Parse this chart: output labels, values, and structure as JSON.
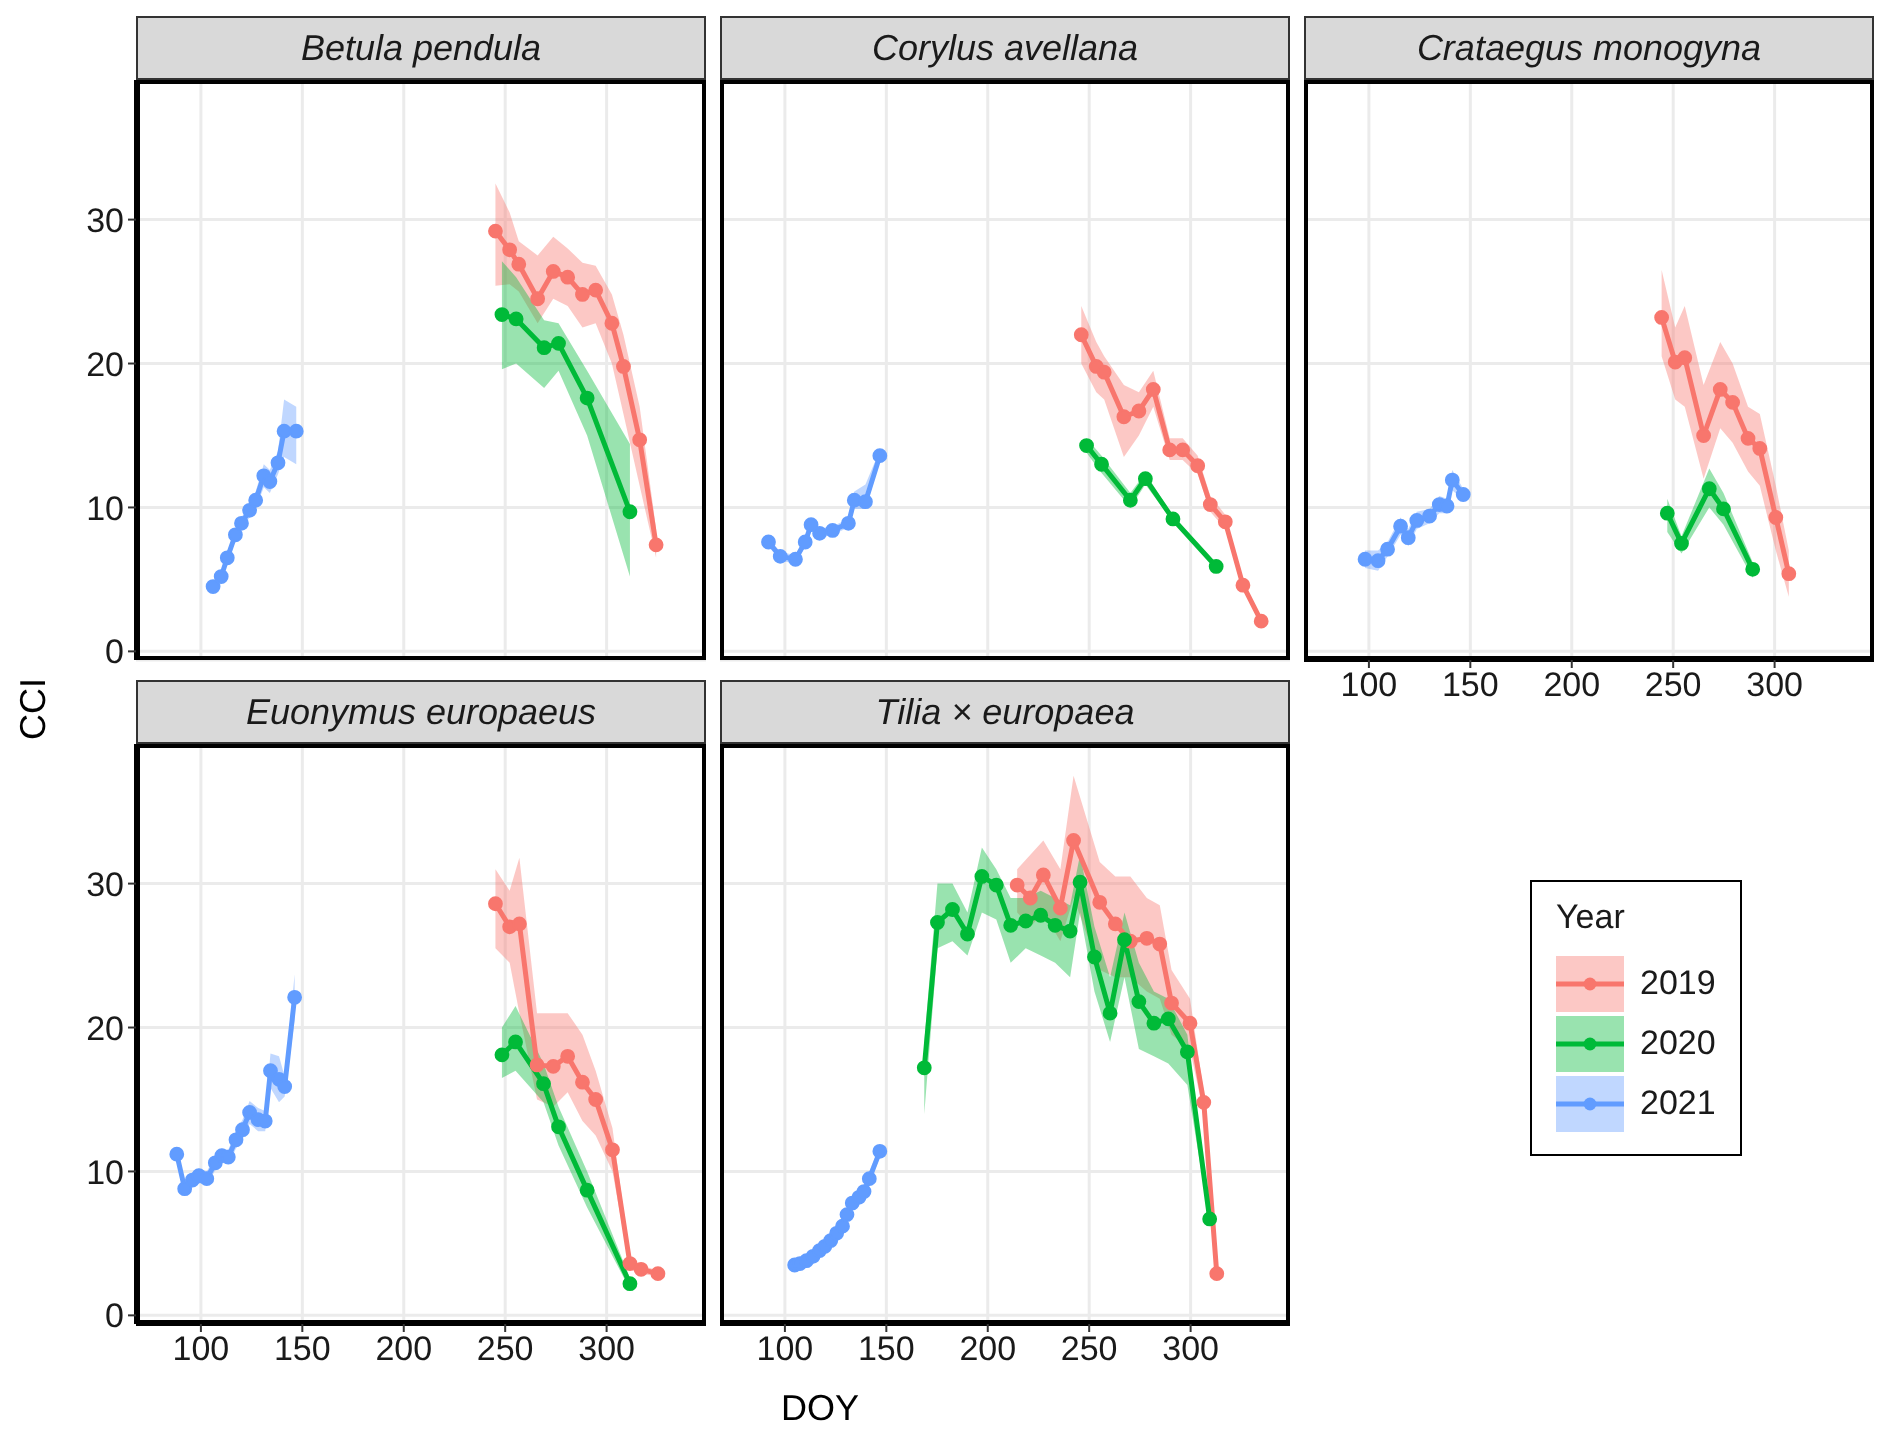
{
  "chart_data": [
    {
      "type": "line",
      "title": "Betula pendula",
      "ylabel": "CCI",
      "legend": "right",
      "legend_title": "Year",
      "xlim": [
        68,
        349
      ],
      "xticks": [
        100,
        150,
        200,
        250,
        300
      ],
      "ylim": [
        -0.6,
        39.7
      ],
      "yticks": [
        0,
        10,
        20,
        30
      ],
      "grid": true,
      "marker": "circle",
      "tick_labels": "y",
      "series": [
        {
          "name": "2019",
          "color": "#f8766d",
          "x": [
            245.2,
            252.2,
            256.7,
            266,
            273.7,
            280.8,
            288.1,
            294.6,
            302.6,
            308.3,
            316.3,
            324.4
          ],
          "values": [
            29.2,
            27.9,
            26.9,
            24.5,
            26.4,
            26.0,
            24.8,
            25.1,
            22.8,
            19.8,
            14.7,
            7.4
          ],
          "lower": [
            25.4,
            25.5,
            25.0,
            22.8,
            24.5,
            24.0,
            22.5,
            22.8,
            20.0,
            16.5,
            11.5,
            6.5
          ],
          "upper": [
            32.5,
            30.5,
            28.5,
            27.5,
            28.8,
            28.0,
            27.0,
            26.8,
            24.8,
            22.0,
            17.0,
            8.5
          ]
        },
        {
          "name": "2020",
          "color": "#00ba38",
          "x": [
            248.4,
            255.4,
            269.2,
            276.3,
            290.4,
            311.5
          ],
          "values": [
            23.4,
            23.1,
            21.1,
            21.4,
            17.6,
            9.7
          ],
          "lower": [
            19.6,
            20.0,
            18.3,
            19.5,
            15.0,
            5.2
          ],
          "upper": [
            27.1,
            26.0,
            23.0,
            22.8,
            19.5,
            14.4
          ]
        },
        {
          "name": "2021",
          "color": "#619cff",
          "x": [
            106,
            110,
            113,
            117,
            120,
            124,
            127,
            131,
            134,
            138,
            141,
            147
          ],
          "values": [
            4.5,
            5.2,
            6.5,
            8.1,
            8.9,
            9.8,
            10.5,
            12.2,
            11.8,
            13.1,
            15.3,
            15.3
          ],
          "lower": [
            4.2,
            4.9,
            6.1,
            7.7,
            8.5,
            9.3,
            9.9,
            11.4,
            11.0,
            12.3,
            13.5,
            13.0
          ],
          "upper": [
            4.8,
            5.5,
            6.9,
            8.5,
            9.3,
            10.3,
            11.1,
            13.0,
            12.6,
            13.9,
            17.5,
            17.0
          ]
        }
      ]
    },
    {
      "type": "line",
      "title": "Corylus avellana",
      "xlim": [
        68,
        349
      ],
      "xticks": [
        100,
        150,
        200,
        250,
        300
      ],
      "ylim": [
        -0.6,
        39.7
      ],
      "yticks": [
        0,
        10,
        20,
        30
      ],
      "grid": true,
      "marker": "circle",
      "tick_labels": false,
      "series": [
        {
          "name": "2019",
          "color": "#f8766d",
          "x": [
            246.1,
            253.5,
            257.4,
            267.1,
            274.5,
            281.6,
            289.7,
            296.1,
            303.5,
            309.7,
            317.1,
            325.8,
            334.8
          ],
          "values": [
            22.0,
            19.8,
            19.4,
            16.3,
            16.7,
            18.2,
            14.0,
            14.0,
            12.9,
            10.2,
            9.0,
            4.6,
            2.1
          ],
          "lower": [
            20.0,
            18.0,
            17.5,
            13.5,
            15.0,
            17.0,
            13.3,
            13.3,
            12.3,
            9.7,
            8.5,
            4.3,
            1.9
          ],
          "upper": [
            24.0,
            21.5,
            20.5,
            18.5,
            18.0,
            19.5,
            14.8,
            14.8,
            13.6,
            10.8,
            9.5,
            4.9,
            2.3
          ]
        },
        {
          "name": "2020",
          "color": "#00ba38",
          "x": [
            248.7,
            256.1,
            270.3,
            277.7,
            291.3,
            312.6
          ],
          "values": [
            14.3,
            13.0,
            10.5,
            12.0,
            9.2,
            5.9
          ],
          "lower": [
            13.8,
            12.4,
            10.0,
            11.6,
            9.0,
            5.7
          ],
          "upper": [
            14.8,
            13.6,
            11.0,
            12.4,
            9.4,
            6.1
          ]
        },
        {
          "name": "2021",
          "color": "#619cff",
          "x": [
            91.9,
            97.7,
            105.2,
            110,
            112.9,
            117.1,
            123.5,
            131.3,
            134.2,
            139.7,
            146.8
          ],
          "values": [
            7.6,
            6.6,
            6.4,
            7.6,
            8.8,
            8.2,
            8.4,
            8.9,
            10.5,
            10.4,
            13.6
          ],
          "lower": [
            7.3,
            6.3,
            6.1,
            7.3,
            8.5,
            7.9,
            8.1,
            8.6,
            9.9,
            9.9,
            13.2
          ],
          "upper": [
            7.9,
            6.9,
            6.7,
            7.9,
            9.1,
            8.5,
            8.7,
            9.2,
            11.1,
            11.6,
            14.0
          ]
        }
      ]
    },
    {
      "type": "line",
      "title": "Crataegus monogyna",
      "xlim": [
        68,
        349
      ],
      "xticks": [
        100,
        150,
        200,
        250,
        300
      ],
      "ylim": [
        -0.6,
        39.7
      ],
      "yticks": [
        0,
        10,
        20,
        30
      ],
      "grid": true,
      "marker": "circle",
      "tick_labels": "x",
      "series": [
        {
          "name": "2019",
          "color": "#f8766d",
          "x": [
            244.3,
            251,
            255.7,
            265,
            273.2,
            279.3,
            286.9,
            292.7,
            300.6,
            307
          ],
          "values": [
            23.2,
            20.1,
            20.4,
            15.0,
            18.2,
            17.3,
            14.8,
            14.1,
            9.3,
            5.4
          ],
          "lower": [
            20.5,
            17.5,
            17.0,
            12.0,
            15.5,
            14.5,
            12.5,
            11.5,
            7.0,
            3.8
          ],
          "upper": [
            26.5,
            22.5,
            24.0,
            18.5,
            21.5,
            20.0,
            17.0,
            16.5,
            11.5,
            7.0
          ]
        },
        {
          "name": "2020",
          "color": "#00ba38",
          "x": [
            247.1,
            254.1,
            267.8,
            274.8,
            289.2
          ],
          "values": [
            9.6,
            7.5,
            11.3,
            9.9,
            5.7
          ],
          "lower": [
            8.3,
            6.8,
            10.0,
            8.8,
            5.1
          ],
          "upper": [
            10.6,
            8.0,
            12.7,
            11.0,
            6.2
          ]
        },
        {
          "name": "2021",
          "color": "#619cff",
          "x": [
            98.1,
            104.5,
            109.2,
            115.6,
            119.4,
            123.6,
            129.9,
            134.7,
            138.5,
            141.1,
            146.5
          ],
          "values": [
            6.4,
            6.3,
            7.1,
            8.7,
            7.9,
            9.1,
            9.4,
            10.2,
            10.1,
            11.9,
            10.9
          ],
          "lower": [
            5.8,
            5.6,
            6.6,
            8.1,
            7.3,
            8.5,
            8.9,
            9.6,
            9.6,
            11.2,
            10.5
          ],
          "upper": [
            7.0,
            7.0,
            7.6,
            9.3,
            8.5,
            9.7,
            9.9,
            10.8,
            10.6,
            12.6,
            11.3
          ]
        }
      ]
    },
    {
      "type": "line",
      "title": "Euonymus europaeus",
      "xlim": [
        68,
        349
      ],
      "xticks": [
        100,
        150,
        200,
        250,
        300
      ],
      "ylim": [
        -0.6,
        39.7
      ],
      "yticks": [
        0,
        10,
        20,
        30
      ],
      "grid": true,
      "marker": "circle",
      "series": [
        {
          "name": "2019",
          "color": "#f8766d",
          "x": [
            245.2,
            252.2,
            257,
            265.7,
            273.7,
            280.8,
            288.1,
            294.6,
            302.9,
            311.5,
            317,
            325.3
          ],
          "values": [
            28.6,
            27.0,
            27.2,
            17.4,
            17.3,
            18.0,
            16.2,
            15.0,
            11.5,
            3.6,
            3.2,
            2.9
          ],
          "lower": [
            25.5,
            24.5,
            21.0,
            15.0,
            14.5,
            15.5,
            13.5,
            12.5,
            10.0,
            3.2,
            2.9,
            2.7
          ],
          "upper": [
            31.0,
            29.5,
            31.8,
            21.0,
            21.0,
            21.0,
            19.5,
            17.0,
            13.0,
            4.0,
            3.5,
            3.1
          ]
        },
        {
          "name": "2020",
          "color": "#00ba38",
          "x": [
            248.4,
            255.1,
            268.9,
            276.3,
            290.4,
            311.5
          ],
          "values": [
            18.1,
            19.0,
            16.1,
            13.1,
            8.7,
            2.2
          ],
          "lower": [
            16.5,
            17.0,
            14.8,
            11.8,
            7.5,
            1.8
          ],
          "upper": [
            20.0,
            21.5,
            17.5,
            14.5,
            10.0,
            2.6
          ]
        },
        {
          "name": "2021",
          "color": "#619cff",
          "x": [
            88.1,
            92,
            95.8,
            99,
            102.9,
            107.1,
            110.3,
            113.5,
            117.3,
            120.5,
            124,
            128.2,
            131.7,
            134.3,
            138.5,
            141.3,
            146.2
          ],
          "values": [
            11.2,
            8.8,
            9.4,
            9.7,
            9.5,
            10.6,
            11.1,
            11.0,
            12.2,
            12.9,
            14.1,
            13.6,
            13.5,
            17.0,
            16.4,
            15.9,
            22.1
          ],
          "lower": [
            10.8,
            8.3,
            8.9,
            9.2,
            9.0,
            10.1,
            10.6,
            10.5,
            11.6,
            12.2,
            13.3,
            12.8,
            12.8,
            15.8,
            14.8,
            15.2,
            20.5
          ],
          "upper": [
            11.6,
            9.3,
            9.9,
            10.2,
            10.0,
            11.1,
            11.6,
            11.5,
            12.8,
            13.6,
            14.9,
            14.4,
            14.2,
            18.2,
            18.0,
            16.6,
            23.7
          ]
        }
      ]
    },
    {
      "type": "line",
      "title": "Tilia × europaea",
      "xlabel": "DOY",
      "xlim": [
        68,
        349
      ],
      "xticks": [
        100,
        150,
        200,
        250,
        300
      ],
      "ylim": [
        -0.6,
        39.7
      ],
      "yticks": [
        0,
        10,
        20,
        30
      ],
      "grid": true,
      "marker": "circle",
      "tick_labels": "x",
      "series": [
        {
          "name": "2019",
          "color": "#f8766d",
          "x": [
            214.5,
            221,
            227.4,
            235.8,
            242.3,
            255.2,
            262.9,
            270.3,
            278.4,
            284.8,
            290.6,
            299.7,
            306.5,
            312.9
          ],
          "values": [
            29.9,
            29.0,
            30.6,
            28.3,
            33.0,
            28.7,
            27.2,
            26.0,
            26.2,
            25.8,
            21.7,
            20.3,
            14.8,
            2.9
          ],
          "lower": [
            28.0,
            27.0,
            28.0,
            26.0,
            29.0,
            24.0,
            23.5,
            23.5,
            22.5,
            22.0,
            19.5,
            18.5,
            14.0,
            2.6
          ],
          "upper": [
            31.0,
            32.0,
            33.0,
            31.0,
            37.5,
            31.5,
            30.5,
            30.5,
            29.0,
            28.5,
            24.0,
            22.0,
            15.5,
            3.2
          ]
        },
        {
          "name": "2020",
          "color": "#00ba38",
          "x": [
            168.7,
            175.2,
            182.6,
            190,
            197.1,
            204.2,
            211.3,
            218.7,
            226.1,
            233.2,
            240.6,
            245.5,
            252.6,
            260.3,
            267.4,
            274.5,
            281.9,
            289,
            298.4,
            309.4
          ],
          "values": [
            17.2,
            27.3,
            28.2,
            26.5,
            30.5,
            29.9,
            27.1,
            27.4,
            27.8,
            27.1,
            26.7,
            30.1,
            24.9,
            21.0,
            26.1,
            21.8,
            20.3,
            20.6,
            18.3,
            6.7
          ],
          "lower": [
            14.0,
            25.5,
            26.0,
            25.0,
            28.0,
            27.5,
            24.5,
            25.5,
            25.0,
            24.5,
            23.5,
            28.0,
            22.5,
            19.0,
            23.5,
            18.5,
            18.0,
            17.5,
            16.0,
            6.4
          ],
          "upper": [
            19.0,
            30.0,
            30.0,
            28.0,
            32.5,
            31.0,
            29.0,
            29.0,
            29.5,
            29.0,
            28.5,
            32.0,
            27.0,
            23.5,
            28.0,
            24.5,
            22.5,
            22.0,
            19.5,
            7.0
          ]
        },
        {
          "name": "2021",
          "color": "#619cff",
          "x": [
            104.8,
            107.4,
            110.6,
            113.9,
            117.1,
            119.7,
            122.6,
            125.5,
            128.4,
            130.6,
            133.2,
            136.5,
            139,
            141.6,
            146.8
          ],
          "values": [
            3.5,
            3.6,
            3.8,
            4.1,
            4.5,
            4.8,
            5.2,
            5.7,
            6.2,
            7.0,
            7.8,
            8.2,
            8.6,
            9.5,
            11.4
          ],
          "lower": [
            3.3,
            3.4,
            3.6,
            3.8,
            4.2,
            4.5,
            4.9,
            5.4,
            5.9,
            6.6,
            7.4,
            7.8,
            8.2,
            9.0,
            11.0
          ],
          "upper": [
            3.7,
            3.8,
            4.0,
            4.4,
            4.8,
            5.1,
            5.5,
            6.0,
            6.5,
            7.4,
            8.2,
            8.6,
            9.0,
            10.0,
            11.8
          ]
        }
      ]
    }
  ]
}
